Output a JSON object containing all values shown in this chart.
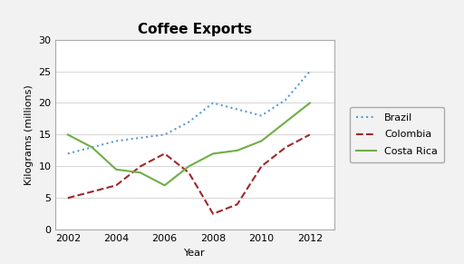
{
  "title": "Coffee Exports",
  "xlabel": "Year",
  "ylabel": "Kilograms (millions)",
  "ylim": [
    0,
    30
  ],
  "yticks": [
    0,
    5,
    10,
    15,
    20,
    25,
    30
  ],
  "years": [
    2002,
    2003,
    2004,
    2005,
    2006,
    2007,
    2008,
    2009,
    2010,
    2011,
    2012
  ],
  "xticks": [
    2002,
    2004,
    2006,
    2008,
    2010,
    2012
  ],
  "brazil": [
    12,
    13,
    14,
    14.5,
    15,
    17,
    20,
    19,
    18,
    20.5,
    25
  ],
  "colombia": [
    5,
    6,
    7,
    10,
    12,
    9,
    2.5,
    4,
    10,
    13,
    15
  ],
  "costa_rica": [
    15,
    13,
    9.5,
    9,
    7,
    10,
    12,
    12.5,
    14,
    17,
    20
  ],
  "brazil_color": "#5B9BD5",
  "colombia_color": "#A0282A",
  "costa_rica_color": "#70AD47",
  "legend_labels": [
    "Brazil",
    "Colombia",
    "Costa Rica"
  ],
  "background_color": "#F2F2F2",
  "plot_bg_color": "#FFFFFF",
  "grid_color": "#D9D9D9",
  "title_fontsize": 11,
  "axis_fontsize": 8,
  "tick_fontsize": 8,
  "legend_fontsize": 8
}
